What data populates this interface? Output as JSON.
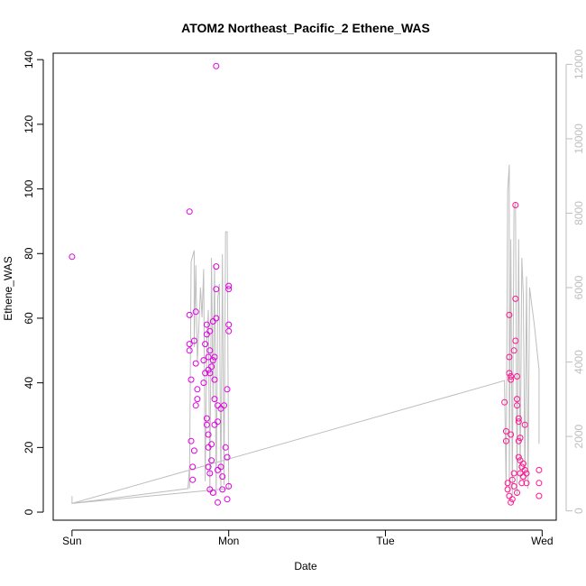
{
  "chart_data": {
    "type": "scatter",
    "title": "ATOM2 Northeast_Pacific_2 Ethene_WAS",
    "xlabel": "Date",
    "ylabel": "Ethene_WAS",
    "x_ticks": [
      {
        "label": "Sun",
        "value": 0
      },
      {
        "label": "Mon",
        "value": 1
      },
      {
        "label": "Tue",
        "value": 2
      },
      {
        "label": "Wed",
        "value": 3
      }
    ],
    "xlim": [
      -0.12,
      3.09
    ],
    "ylim": [
      -2.5,
      142
    ],
    "y_ticks": [
      0,
      20,
      40,
      60,
      80,
      100,
      120,
      140
    ],
    "y2lim": [
      -250,
      12300
    ],
    "y2_ticks": [
      0,
      2000,
      4000,
      6000,
      8000,
      10000,
      12000
    ],
    "grid": false,
    "colors": {
      "points": "#e100e1",
      "points_late": "#ff1493",
      "line": "#bebebe",
      "axis_right": "#bebebe"
    },
    "series": [
      {
        "kind": "points",
        "values": [
          [
            0.0,
            79
          ],
          [
            0.75,
            93
          ],
          [
            0.75,
            61
          ],
          [
            0.75,
            52
          ],
          [
            0.75,
            50
          ],
          [
            0.76,
            41
          ],
          [
            0.76,
            22
          ],
          [
            0.77,
            14
          ],
          [
            0.78,
            53
          ],
          [
            0.79,
            62
          ],
          [
            0.79,
            46
          ],
          [
            0.8,
            38
          ],
          [
            0.8,
            35
          ],
          [
            0.79,
            33
          ],
          [
            0.78,
            19
          ],
          [
            0.77,
            10
          ],
          [
            0.84,
            40
          ],
          [
            0.84,
            47
          ],
          [
            0.85,
            52
          ],
          [
            0.85,
            43
          ],
          [
            0.86,
            58
          ],
          [
            0.86,
            55
          ],
          [
            0.86,
            29
          ],
          [
            0.86,
            27
          ],
          [
            0.87,
            48
          ],
          [
            0.87,
            44
          ],
          [
            0.87,
            24
          ],
          [
            0.87,
            20
          ],
          [
            0.87,
            14
          ],
          [
            0.88,
            56
          ],
          [
            0.88,
            50
          ],
          [
            0.88,
            43
          ],
          [
            0.88,
            12
          ],
          [
            0.88,
            7
          ],
          [
            0.89,
            45
          ],
          [
            0.89,
            21
          ],
          [
            0.89,
            16
          ],
          [
            0.9,
            6
          ],
          [
            0.9,
            59
          ],
          [
            0.9,
            47
          ],
          [
            0.91,
            48
          ],
          [
            0.91,
            41
          ],
          [
            0.91,
            35
          ],
          [
            0.91,
            27
          ],
          [
            0.92,
            138
          ],
          [
            0.92,
            76
          ],
          [
            0.92,
            69
          ],
          [
            0.92,
            60
          ],
          [
            0.93,
            33
          ],
          [
            0.93,
            28
          ],
          [
            0.93,
            13
          ],
          [
            0.93,
            3
          ],
          [
            0.95,
            32
          ],
          [
            0.95,
            14
          ],
          [
            0.96,
            11
          ],
          [
            0.96,
            7
          ],
          [
            0.97,
            33
          ],
          [
            0.98,
            20
          ],
          [
            0.99,
            38
          ],
          [
            0.99,
            17
          ],
          [
            1.0,
            69
          ],
          [
            1.0,
            70
          ],
          [
            1.0,
            58
          ],
          [
            1.0,
            56
          ],
          [
            1.0,
            8
          ],
          [
            0.99,
            4
          ],
          [
            2.76,
            34
          ],
          [
            2.77,
            25
          ],
          [
            2.77,
            22
          ],
          [
            2.78,
            9
          ],
          [
            2.78,
            7
          ],
          [
            2.79,
            61
          ],
          [
            2.79,
            48
          ],
          [
            2.79,
            43
          ],
          [
            2.8,
            42
          ],
          [
            2.8,
            41
          ],
          [
            2.8,
            24
          ],
          [
            2.81,
            10
          ],
          [
            2.81,
            4
          ],
          [
            2.82,
            50
          ],
          [
            2.82,
            12
          ],
          [
            2.83,
            95
          ],
          [
            2.83,
            66
          ],
          [
            2.83,
            53
          ],
          [
            2.84,
            42
          ],
          [
            2.84,
            35
          ],
          [
            2.84,
            33
          ],
          [
            2.85,
            29
          ],
          [
            2.85,
            28
          ],
          [
            2.85,
            22
          ],
          [
            2.85,
            17
          ],
          [
            2.86,
            23
          ],
          [
            2.86,
            16
          ],
          [
            2.86,
            12
          ],
          [
            2.87,
            9
          ],
          [
            2.87,
            14
          ],
          [
            2.88,
            15
          ],
          [
            2.88,
            11
          ],
          [
            2.89,
            27
          ],
          [
            2.89,
            13
          ],
          [
            2.9,
            12
          ],
          [
            2.9,
            9
          ],
          [
            2.84,
            6
          ],
          [
            2.82,
            8
          ],
          [
            2.8,
            3
          ],
          [
            2.79,
            5
          ],
          [
            2.98,
            13
          ],
          [
            2.98,
            9
          ],
          [
            2.98,
            5
          ]
        ]
      },
      {
        "kind": "line",
        "axis": "right",
        "values": [
          [
            0.0,
            200
          ],
          [
            0.0,
            400
          ],
          [
            0.0,
            200
          ],
          [
            0.74,
            600
          ],
          [
            0.75,
            1200
          ],
          [
            0.75,
            600
          ],
          [
            0.76,
            6700
          ],
          [
            0.78,
            7000
          ],
          [
            0.78,
            4400
          ],
          [
            0.79,
            6600
          ],
          [
            0.8,
            4000
          ],
          [
            0.81,
            5000
          ],
          [
            0.82,
            6000
          ],
          [
            0.83,
            5200
          ],
          [
            0.84,
            6500
          ],
          [
            0.85,
            800
          ],
          [
            0.86,
            4600
          ],
          [
            0.87,
            5400
          ],
          [
            0.88,
            500
          ],
          [
            0.89,
            6800
          ],
          [
            0.9,
            3000
          ],
          [
            0.91,
            6600
          ],
          [
            0.92,
            400
          ],
          [
            0.93,
            5700
          ],
          [
            0.94,
            6100
          ],
          [
            0.95,
            600
          ],
          [
            0.96,
            6900
          ],
          [
            0.97,
            700
          ],
          [
            0.98,
            7500
          ],
          [
            0.99,
            7500
          ],
          [
            1.0,
            600
          ],
          [
            0.0,
            200
          ],
          [
            2.76,
            3500
          ],
          [
            2.77,
            600
          ],
          [
            2.78,
            8600
          ],
          [
            2.79,
            9300
          ],
          [
            2.79,
            500
          ],
          [
            2.8,
            7300
          ],
          [
            2.81,
            400
          ],
          [
            2.82,
            8100
          ],
          [
            2.83,
            8300
          ],
          [
            2.84,
            400
          ],
          [
            2.85,
            7300
          ],
          [
            2.86,
            800
          ],
          [
            2.87,
            6800
          ],
          [
            2.88,
            5800
          ],
          [
            2.89,
            800
          ],
          [
            2.9,
            6300
          ],
          [
            2.91,
            600
          ],
          [
            2.92,
            6000
          ],
          [
            2.95,
            5000
          ],
          [
            2.98,
            3800
          ],
          [
            2.98,
            1800
          ]
        ]
      }
    ]
  }
}
